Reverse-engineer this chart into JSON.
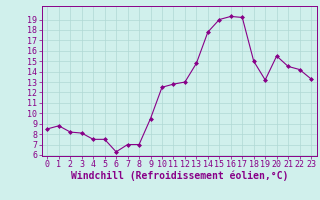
{
  "x": [
    0,
    1,
    2,
    3,
    4,
    5,
    6,
    7,
    8,
    9,
    10,
    11,
    12,
    13,
    14,
    15,
    16,
    17,
    18,
    19,
    20,
    21,
    22,
    23
  ],
  "y": [
    8.5,
    8.8,
    8.2,
    8.1,
    7.5,
    7.5,
    6.3,
    7.0,
    7.0,
    9.5,
    12.5,
    12.8,
    13.0,
    14.8,
    17.8,
    19.0,
    19.3,
    19.2,
    15.0,
    13.2,
    15.5,
    14.5,
    14.2,
    13.3
  ],
  "line_color": "#880088",
  "marker": "D",
  "marker_size": 2.0,
  "bg_color": "#d0f0ec",
  "grid_color": "#b0d8d4",
  "xlabel": "Windchill (Refroidissement éolien,°C)",
  "ylim_min": 6,
  "ylim_max": 20,
  "xlim_min": -0.5,
  "xlim_max": 23.5,
  "yticks": [
    6,
    7,
    8,
    9,
    10,
    11,
    12,
    13,
    14,
    15,
    16,
    17,
    18,
    19
  ],
  "xticks": [
    0,
    1,
    2,
    3,
    4,
    5,
    6,
    7,
    8,
    9,
    10,
    11,
    12,
    13,
    14,
    15,
    16,
    17,
    18,
    19,
    20,
    21,
    22,
    23
  ],
  "tick_color": "#880088",
  "spine_color": "#880088",
  "font_size": 6,
  "xlabel_fontsize": 7
}
